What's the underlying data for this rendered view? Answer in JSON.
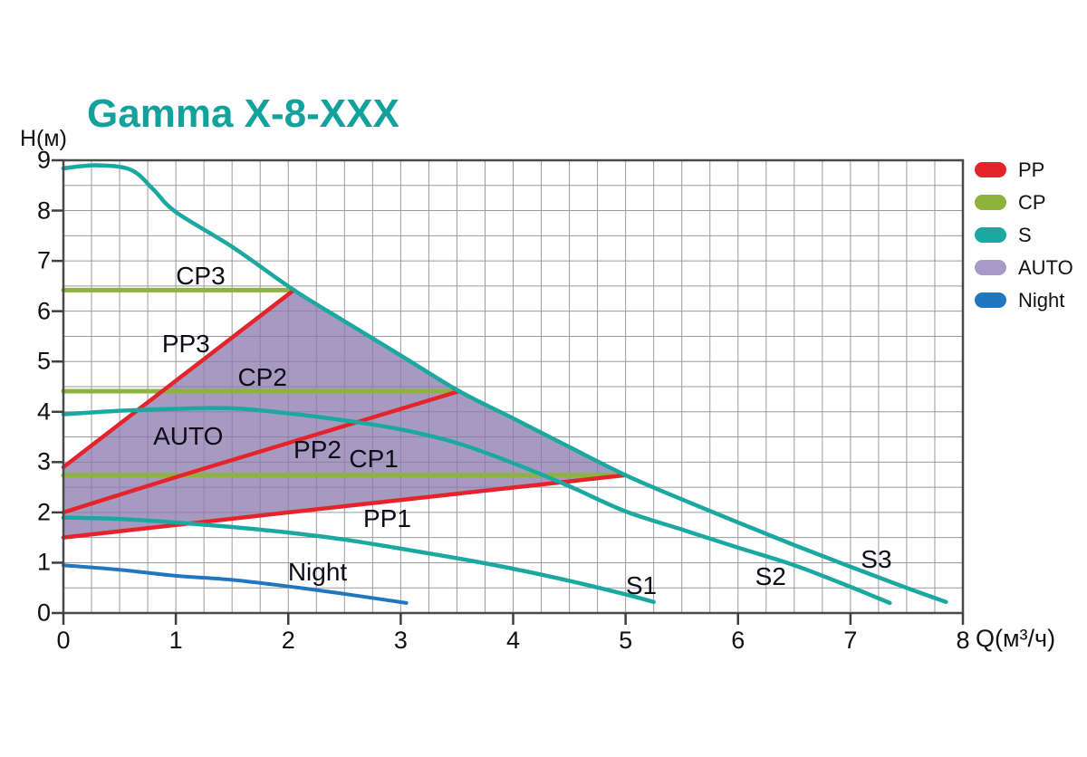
{
  "title": {
    "text": "Gamma X-8-XXX",
    "color": "#13a29b"
  },
  "axes": {
    "x_label": "Q(м³/ч)",
    "y_label": "H(м)"
  },
  "legend": {
    "items": [
      {
        "label": "PP",
        "color": "#e5232b"
      },
      {
        "label": "CP",
        "color": "#8db33c"
      },
      {
        "label": "S",
        "color": "#1aa8a0"
      },
      {
        "label": "AUTO",
        "color": "#a79ac8"
      },
      {
        "label": "Night",
        "color": "#2077c0"
      }
    ]
  },
  "chart_data": {
    "type": "line",
    "title": "Gamma X-8-XXX",
    "xlabel": "Q(м³/ч)",
    "ylabel": "H(м)",
    "xlim": [
      0,
      8
    ],
    "ylim": [
      0,
      9
    ],
    "x_ticks": [
      0,
      1,
      2,
      3,
      4,
      5,
      6,
      7,
      8
    ],
    "y_ticks": [
      0,
      1,
      2,
      3,
      4,
      5,
      6,
      7,
      8,
      9
    ],
    "x_minor_step": 0.25,
    "y_minor_step": 0.5,
    "grid": true,
    "legend_position": "outside-top-right",
    "grid_color": "#9b9b9b",
    "frame_color": "#4a4a4a",
    "series": [
      {
        "name": "CP1",
        "group": "CP",
        "color": "#8db33c",
        "width": 5,
        "points": [
          [
            0,
            2.74
          ],
          [
            5,
            2.74
          ]
        ]
      },
      {
        "name": "CP2",
        "group": "CP",
        "color": "#8db33c",
        "width": 5,
        "points": [
          [
            0,
            4.41
          ],
          [
            3.52,
            4.41
          ]
        ]
      },
      {
        "name": "CP3",
        "group": "CP",
        "color": "#8db33c",
        "width": 5,
        "points": [
          [
            0,
            6.42
          ],
          [
            2.05,
            6.42
          ]
        ]
      },
      {
        "name": "PP1",
        "group": "PP",
        "color": "#e5232b",
        "width": 4.5,
        "points": [
          [
            0,
            1.5
          ],
          [
            2,
            2.0
          ],
          [
            5,
            2.74
          ]
        ]
      },
      {
        "name": "PP2",
        "group": "PP",
        "color": "#e5232b",
        "width": 4.5,
        "points": [
          [
            0,
            2.0
          ],
          [
            1,
            2.7
          ],
          [
            2,
            3.38
          ],
          [
            3.52,
            4.41
          ]
        ]
      },
      {
        "name": "PP3",
        "group": "PP",
        "color": "#e5232b",
        "width": 4.5,
        "points": [
          [
            0,
            2.9
          ],
          [
            2.05,
            6.42
          ]
        ]
      },
      {
        "name": "S1",
        "group": "S",
        "color": "#1aa8a0",
        "width": 4.5,
        "points": [
          [
            0,
            1.9
          ],
          [
            0.5,
            1.87
          ],
          [
            1,
            1.8
          ],
          [
            1.5,
            1.71
          ],
          [
            2,
            1.6
          ],
          [
            2.5,
            1.46
          ],
          [
            3,
            1.28
          ],
          [
            3.5,
            1.09
          ],
          [
            4,
            0.88
          ],
          [
            4.5,
            0.64
          ],
          [
            5,
            0.37
          ],
          [
            5.25,
            0.22
          ]
        ]
      },
      {
        "name": "S2",
        "group": "S",
        "color": "#1aa8a0",
        "width": 4.5,
        "points": [
          [
            0,
            3.95
          ],
          [
            0.5,
            4.02
          ],
          [
            1,
            4.06
          ],
          [
            1.5,
            4.07
          ],
          [
            2,
            3.97
          ],
          [
            2.5,
            3.83
          ],
          [
            3,
            3.65
          ],
          [
            3.5,
            3.38
          ],
          [
            4,
            2.98
          ],
          [
            4.5,
            2.52
          ],
          [
            5,
            2.02
          ],
          [
            5.5,
            1.66
          ],
          [
            6,
            1.3
          ],
          [
            6.5,
            0.95
          ],
          [
            7,
            0.52
          ],
          [
            7.35,
            0.2
          ]
        ]
      },
      {
        "name": "S3",
        "group": "S",
        "color": "#1aa8a0",
        "width": 4.5,
        "points": [
          [
            0,
            8.84
          ],
          [
            0.3,
            8.9
          ],
          [
            0.6,
            8.81
          ],
          [
            0.8,
            8.42
          ],
          [
            1,
            7.97
          ],
          [
            1.5,
            7.28
          ],
          [
            2.05,
            6.42
          ],
          [
            2.5,
            5.8
          ],
          [
            3,
            5.12
          ],
          [
            3.52,
            4.41
          ],
          [
            4,
            3.87
          ],
          [
            4.5,
            3.3
          ],
          [
            5,
            2.74
          ],
          [
            5.5,
            2.26
          ],
          [
            6,
            1.8
          ],
          [
            6.5,
            1.35
          ],
          [
            7,
            0.92
          ],
          [
            7.5,
            0.5
          ],
          [
            7.85,
            0.22
          ]
        ]
      },
      {
        "name": "Night",
        "group": "Night",
        "color": "#2077c0",
        "width": 4,
        "points": [
          [
            0,
            0.95
          ],
          [
            0.5,
            0.86
          ],
          [
            1,
            0.74
          ],
          [
            1.5,
            0.66
          ],
          [
            2,
            0.53
          ],
          [
            2.5,
            0.38
          ],
          [
            3.05,
            0.2
          ]
        ]
      }
    ],
    "auto_region": {
      "name": "AUTO",
      "color": "rgba(137,120,172,0.75)",
      "points": [
        [
          0,
          1.5
        ],
        [
          0,
          2.9
        ],
        [
          2.05,
          6.42
        ],
        [
          2.5,
          5.8
        ],
        [
          3,
          5.12
        ],
        [
          3.52,
          4.41
        ],
        [
          4,
          3.87
        ],
        [
          4.5,
          3.3
        ],
        [
          5,
          2.74
        ]
      ]
    },
    "curve_labels": [
      {
        "text": "CP3",
        "x": 1.22,
        "y": 6.69
      },
      {
        "text": "PP3",
        "x": 1.09,
        "y": 5.34
      },
      {
        "text": "CP2",
        "x": 1.77,
        "y": 4.68
      },
      {
        "text": "AUTO",
        "x": 1.11,
        "y": 3.51
      },
      {
        "text": "PP2",
        "x": 2.26,
        "y": 3.24
      },
      {
        "text": "CP1",
        "x": 2.76,
        "y": 3.06
      },
      {
        "text": "PP1",
        "x": 2.88,
        "y": 1.87
      },
      {
        "text": "Night",
        "x": 2.26,
        "y": 0.81
      },
      {
        "text": "S1",
        "x": 5.14,
        "y": 0.54
      },
      {
        "text": "S2",
        "x": 6.29,
        "y": 0.72
      },
      {
        "text": "S3",
        "x": 7.23,
        "y": 1.06
      }
    ]
  }
}
